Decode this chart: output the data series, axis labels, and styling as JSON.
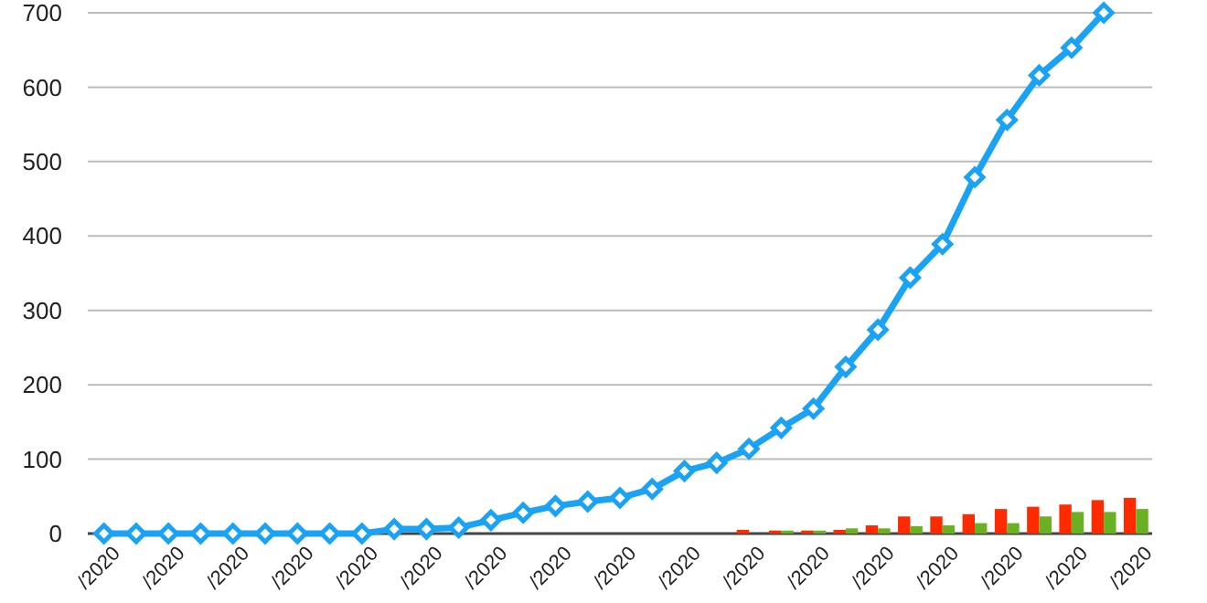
{
  "chart_data": {
    "type": "bar",
    "categories": [
      "/2020",
      null,
      "/2020",
      null,
      "/2020",
      null,
      "/2020",
      null,
      "/2020",
      null,
      "/2020",
      null,
      "/2020",
      null,
      "/2020",
      null,
      "/2020",
      null,
      "/2020",
      null,
      "/2020",
      null,
      "/2020",
      null,
      "/2020",
      null,
      "/2020",
      null,
      "/2020",
      null,
      "/2020",
      null,
      "/2020"
    ],
    "series": [
      {
        "type": "line",
        "color": "#1aa3f5",
        "marker": "diamond",
        "values": [
          0,
          0,
          0,
          0,
          0,
          0,
          0,
          0,
          0,
          6,
          6,
          8,
          18,
          28,
          37,
          43,
          48,
          60,
          84,
          95,
          114,
          142,
          168,
          224,
          274,
          344,
          389,
          479,
          556,
          616,
          653,
          700,
          null
        ]
      },
      {
        "color": "#ff2a00",
        "values": [
          null,
          null,
          null,
          null,
          null,
          null,
          null,
          null,
          null,
          null,
          null,
          null,
          null,
          null,
          null,
          null,
          null,
          null,
          null,
          null,
          5,
          4,
          4,
          5,
          11,
          23,
          23,
          26,
          33,
          36,
          39,
          45,
          48
        ]
      },
      {
        "color": "#6ab023",
        "values": [
          null,
          null,
          null,
          null,
          null,
          null,
          null,
          null,
          null,
          null,
          null,
          null,
          null,
          null,
          null,
          null,
          null,
          null,
          null,
          null,
          null,
          4,
          4,
          7,
          7,
          10,
          11,
          14,
          14,
          23,
          29,
          29,
          33
        ]
      }
    ],
    "ylim": [
      0,
      700
    ],
    "yticks": [
      0,
      100,
      200,
      300,
      400,
      500,
      600,
      700
    ],
    "grid": "y"
  }
}
